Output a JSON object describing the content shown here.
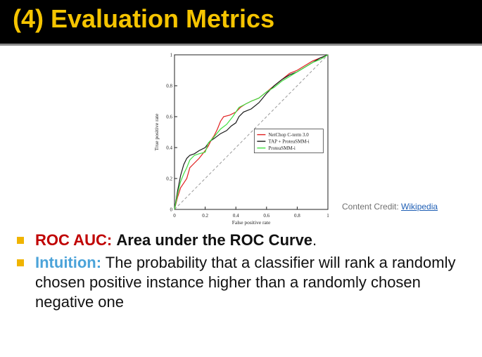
{
  "slide": {
    "title": "(4) Evaluation Metrics",
    "credit_prefix": "Content Credit: ",
    "credit_link": "Wikipedia",
    "bullets": [
      {
        "term": "ROC AUC:",
        "text": "Area under the ROC Curve",
        "suffix": "."
      },
      {
        "term": "Intuition:",
        "text": "The probability that a classifier will rank a randomly chosen positive instance higher than a randomly chosen negative one"
      }
    ],
    "colors": {
      "title": "#f5c400",
      "term1": "#c00000",
      "term2": "#4ba3d9",
      "bullet": "#f0b400"
    }
  },
  "chart_data": {
    "type": "line",
    "title": "",
    "xlabel": "False positive rate",
    "ylabel": "True positive rate",
    "xlim": [
      0,
      1
    ],
    "ylim": [
      0,
      1
    ],
    "x_ticks": [
      "0",
      "0.2",
      "0.4",
      "0.6",
      "0.8",
      "1"
    ],
    "y_ticks": [
      "0",
      "0.2",
      "0.4",
      "0.6",
      "0.8",
      "1"
    ],
    "grid": false,
    "legend": "center-right",
    "diagonal": true,
    "series": [
      {
        "name": "NetChop C-term 3.0",
        "color": "#e02020",
        "points": [
          [
            0,
            0
          ],
          [
            0.02,
            0.08
          ],
          [
            0.04,
            0.14
          ],
          [
            0.06,
            0.17
          ],
          [
            0.08,
            0.2
          ],
          [
            0.1,
            0.27
          ],
          [
            0.13,
            0.3
          ],
          [
            0.16,
            0.33
          ],
          [
            0.2,
            0.38
          ],
          [
            0.22,
            0.41
          ],
          [
            0.24,
            0.45
          ],
          [
            0.26,
            0.48
          ],
          [
            0.28,
            0.52
          ],
          [
            0.3,
            0.57
          ],
          [
            0.32,
            0.6
          ],
          [
            0.36,
            0.61
          ],
          [
            0.4,
            0.63
          ],
          [
            0.43,
            0.66
          ],
          [
            0.46,
            0.68
          ],
          [
            0.5,
            0.7
          ],
          [
            0.55,
            0.72
          ],
          [
            0.6,
            0.76
          ],
          [
            0.65,
            0.8
          ],
          [
            0.7,
            0.84
          ],
          [
            0.75,
            0.88
          ],
          [
            0.8,
            0.9
          ],
          [
            0.85,
            0.93
          ],
          [
            0.9,
            0.96
          ],
          [
            0.95,
            0.98
          ],
          [
            1,
            1
          ]
        ]
      },
      {
        "name": "TAP + ProteaSMM-i",
        "color": "#1a1a1a",
        "points": [
          [
            0,
            0
          ],
          [
            0.02,
            0.12
          ],
          [
            0.04,
            0.22
          ],
          [
            0.06,
            0.29
          ],
          [
            0.08,
            0.33
          ],
          [
            0.1,
            0.35
          ],
          [
            0.13,
            0.36
          ],
          [
            0.16,
            0.38
          ],
          [
            0.2,
            0.4
          ],
          [
            0.23,
            0.44
          ],
          [
            0.26,
            0.46
          ],
          [
            0.3,
            0.49
          ],
          [
            0.34,
            0.51
          ],
          [
            0.37,
            0.54
          ],
          [
            0.4,
            0.56
          ],
          [
            0.42,
            0.6
          ],
          [
            0.45,
            0.63
          ],
          [
            0.5,
            0.65
          ],
          [
            0.55,
            0.69
          ],
          [
            0.6,
            0.75
          ],
          [
            0.65,
            0.8
          ],
          [
            0.7,
            0.84
          ],
          [
            0.75,
            0.87
          ],
          [
            0.8,
            0.89
          ],
          [
            0.85,
            0.92
          ],
          [
            0.9,
            0.95
          ],
          [
            0.95,
            0.98
          ],
          [
            1,
            1
          ]
        ]
      },
      {
        "name": "ProteaSMM-i",
        "color": "#40e040",
        "points": [
          [
            0,
            0
          ],
          [
            0.02,
            0.1
          ],
          [
            0.04,
            0.18
          ],
          [
            0.06,
            0.23
          ],
          [
            0.08,
            0.27
          ],
          [
            0.1,
            0.32
          ],
          [
            0.13,
            0.35
          ],
          [
            0.16,
            0.36
          ],
          [
            0.2,
            0.37
          ],
          [
            0.22,
            0.43
          ],
          [
            0.25,
            0.46
          ],
          [
            0.3,
            0.52
          ],
          [
            0.34,
            0.55
          ],
          [
            0.38,
            0.6
          ],
          [
            0.42,
            0.66
          ],
          [
            0.46,
            0.68
          ],
          [
            0.5,
            0.7
          ],
          [
            0.55,
            0.72
          ],
          [
            0.6,
            0.76
          ],
          [
            0.65,
            0.79
          ],
          [
            0.7,
            0.83
          ],
          [
            0.75,
            0.86
          ],
          [
            0.8,
            0.89
          ],
          [
            0.85,
            0.92
          ],
          [
            0.9,
            0.95
          ],
          [
            0.95,
            0.97
          ],
          [
            1,
            1
          ]
        ]
      }
    ]
  }
}
